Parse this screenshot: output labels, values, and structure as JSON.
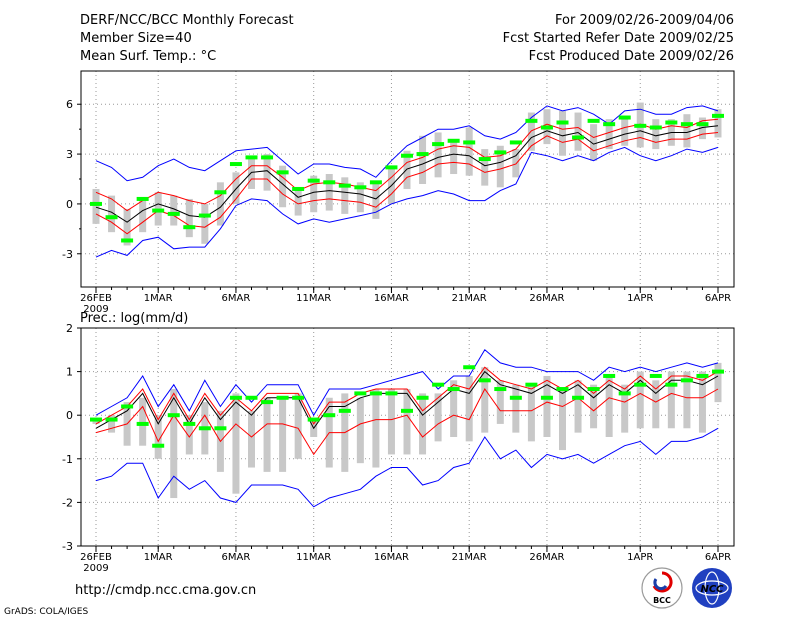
{
  "header": {
    "title": "DERF/NCC/BCC Monthly Forecast",
    "member_size": "Member Size=40",
    "variable1": "Mean Surf. Temp.: °C",
    "for_range": "For 2009/02/26-2009/04/06",
    "refer_date": "Fcst Started Refer Date 2009/02/25",
    "produced_date": "Fcst Produced Date 2009/02/26"
  },
  "footer": {
    "url": "http://cmdp.ncc.cma.gov.cn",
    "grads": "GrADS: COLA/IGES",
    "logo_bcc_text": "BCC",
    "logo_ncc_text": "NCC"
  },
  "chart_data": [
    {
      "type": "line",
      "title": "Mean Surf. Temp.: °C",
      "x_day_index_range": [
        0,
        39
      ],
      "x_ticks": [
        {
          "day": 0,
          "label": "26FEB",
          "sub": "2009"
        },
        {
          "day": 4,
          "label": "1MAR"
        },
        {
          "day": 9,
          "label": "6MAR"
        },
        {
          "day": 14,
          "label": "11MAR"
        },
        {
          "day": 19,
          "label": "16MAR"
        },
        {
          "day": 24,
          "label": "21MAR"
        },
        {
          "day": 29,
          "label": "26MAR"
        },
        {
          "day": 35,
          "label": "1APR"
        },
        {
          "day": 40,
          "label": "6APR"
        }
      ],
      "ylim": [
        -5,
        8
      ],
      "yticks": [
        -3,
        0,
        3,
        6
      ],
      "series": [
        {
          "name": "ensemble max",
          "color": "#0000ff",
          "values": [
            2.6,
            2.2,
            1.4,
            1.6,
            2.3,
            2.7,
            2.2,
            2.0,
            2.6,
            3.2,
            3.3,
            3.4,
            2.6,
            1.8,
            2.4,
            2.4,
            2.2,
            2.1,
            1.6,
            2.6,
            3.5,
            4.0,
            4.5,
            4.5,
            4.7,
            4.1,
            3.9,
            4.3,
            5.2,
            5.9,
            5.6,
            5.8,
            5.4,
            4.8,
            5.6,
            5.7,
            5.4,
            5.4,
            5.8,
            5.9,
            5.6
          ]
        },
        {
          "name": "upper bound",
          "color": "#ff0000",
          "values": [
            0.7,
            0.3,
            -0.4,
            0.2,
            0.7,
            0.5,
            0.2,
            0.0,
            0.5,
            1.5,
            2.3,
            2.3,
            1.6,
            0.8,
            1.2,
            1.3,
            1.2,
            1.0,
            0.8,
            1.6,
            2.5,
            2.8,
            3.3,
            3.5,
            3.4,
            2.8,
            2.9,
            3.3,
            4.4,
            4.8,
            4.5,
            4.6,
            4.0,
            4.3,
            4.6,
            4.8,
            4.5,
            4.7,
            4.6,
            5.0,
            5.1
          ]
        },
        {
          "name": "ensemble mean",
          "color": "#000000",
          "values": [
            -0.2,
            -0.5,
            -1.1,
            -0.4,
            0.0,
            -0.3,
            -0.7,
            -0.8,
            -0.2,
            0.9,
            1.9,
            2.0,
            1.2,
            0.4,
            0.7,
            0.8,
            0.7,
            0.6,
            0.3,
            1.1,
            2.1,
            2.4,
            2.8,
            3.0,
            2.9,
            2.3,
            2.5,
            2.9,
            4.0,
            4.4,
            4.1,
            4.3,
            3.6,
            3.9,
            4.2,
            4.4,
            4.1,
            4.3,
            4.3,
            4.6,
            4.7
          ]
        },
        {
          "name": "lower bound",
          "color": "#ff0000",
          "values": [
            -0.6,
            -1.1,
            -1.8,
            -1.1,
            -0.4,
            -0.7,
            -1.3,
            -1.4,
            -0.8,
            0.3,
            1.5,
            1.5,
            0.6,
            0.0,
            0.2,
            0.3,
            0.2,
            0.1,
            -0.2,
            0.6,
            1.6,
            1.9,
            2.4,
            2.5,
            2.4,
            1.9,
            2.1,
            2.4,
            3.5,
            4.1,
            3.7,
            3.9,
            3.2,
            3.5,
            3.8,
            4.0,
            3.7,
            3.9,
            3.9,
            4.2,
            4.3
          ]
        },
        {
          "name": "ensemble min",
          "color": "#0000ff",
          "values": [
            -3.2,
            -2.8,
            -3.1,
            -2.2,
            -2.0,
            -2.7,
            -2.6,
            -2.6,
            -1.5,
            -0.1,
            0.3,
            0.2,
            -0.6,
            -1.2,
            -0.9,
            -1.1,
            -0.9,
            -0.7,
            -0.5,
            0.0,
            0.3,
            0.5,
            0.8,
            0.6,
            0.2,
            0.2,
            0.8,
            1.2,
            3.1,
            2.9,
            2.6,
            2.9,
            2.6,
            3.1,
            3.4,
            2.9,
            2.6,
            2.9,
            3.3,
            3.1,
            3.4
          ]
        }
      ],
      "percentile_bars": {
        "color": "#c8c8c8",
        "low": [
          -1.2,
          -1.7,
          -2.5,
          -1.7,
          -1.3,
          -1.3,
          -2.0,
          -2.4,
          -1.3,
          0.0,
          0.9,
          0.8,
          -0.2,
          -0.7,
          -0.5,
          -0.4,
          -0.6,
          -0.5,
          -0.9,
          0.0,
          0.9,
          1.2,
          1.6,
          1.8,
          1.7,
          1.1,
          1.0,
          1.6,
          3.2,
          3.6,
          2.9,
          3.2,
          2.6,
          3.3,
          3.5,
          3.4,
          3.3,
          3.5,
          3.4,
          3.9,
          4.0
        ],
        "high": [
          0.9,
          0.5,
          -0.3,
          0.3,
          0.7,
          0.5,
          0.3,
          0.0,
          1.3,
          1.9,
          2.9,
          3.0,
          2.3,
          0.9,
          1.7,
          1.8,
          1.6,
          1.3,
          1.3,
          2.2,
          3.2,
          4.1,
          4.3,
          3.9,
          4.6,
          3.3,
          3.5,
          3.3,
          5.5,
          5.7,
          5.6,
          5.5,
          4.8,
          5.1,
          5.2,
          6.1,
          5.1,
          5.1,
          5.4,
          5.2,
          5.7
        ]
      },
      "markers": {
        "color": "#00ff00",
        "values": [
          0.0,
          -0.8,
          -2.2,
          0.3,
          -0.4,
          -0.6,
          -1.4,
          -0.7,
          0.7,
          2.4,
          2.8,
          2.8,
          1.9,
          0.9,
          1.4,
          1.3,
          1.1,
          1.0,
          1.3,
          2.2,
          2.9,
          3.0,
          3.6,
          3.8,
          3.7,
          2.7,
          3.1,
          3.7,
          5.0,
          4.6,
          4.9,
          4.0,
          5.0,
          4.8,
          5.2,
          4.7,
          4.6,
          4.9,
          4.8,
          4.8,
          5.3
        ]
      }
    },
    {
      "type": "line",
      "title": "Prec.: log(mm/d)",
      "x_day_index_range": [
        0,
        39
      ],
      "x_ticks": [
        {
          "day": 0,
          "label": "26FEB",
          "sub": "2009"
        },
        {
          "day": 4,
          "label": "1MAR"
        },
        {
          "day": 9,
          "label": "6MAR"
        },
        {
          "day": 14,
          "label": "11MAR"
        },
        {
          "day": 19,
          "label": "16MAR"
        },
        {
          "day": 24,
          "label": "21MAR"
        },
        {
          "day": 29,
          "label": "26MAR"
        },
        {
          "day": 35,
          "label": "1APR"
        },
        {
          "day": 40,
          "label": "6APR"
        }
      ],
      "ylim": [
        -3,
        2
      ],
      "yticks": [
        -3,
        -2,
        -1,
        0,
        1,
        2
      ],
      "series": [
        {
          "name": "ensemble max",
          "color": "#0000ff",
          "values": [
            0.0,
            0.2,
            0.4,
            0.9,
            0.2,
            0.7,
            0.1,
            0.8,
            0.2,
            0.7,
            0.3,
            0.7,
            0.7,
            0.7,
            0.0,
            0.6,
            0.6,
            0.6,
            0.7,
            0.8,
            0.9,
            1.0,
            0.6,
            0.9,
            0.9,
            1.5,
            1.2,
            1.1,
            1.1,
            1.0,
            1.0,
            1.0,
            0.8,
            1.1,
            1.0,
            1.1,
            1.0,
            1.1,
            1.2,
            1.1,
            1.2
          ]
        },
        {
          "name": "upper bound",
          "color": "#ff0000",
          "values": [
            -0.2,
            0.0,
            0.2,
            0.6,
            -0.1,
            0.5,
            -0.1,
            0.5,
            0.0,
            0.4,
            0.1,
            0.5,
            0.5,
            0.5,
            -0.2,
            0.3,
            0.3,
            0.5,
            0.6,
            0.6,
            0.6,
            0.1,
            0.4,
            0.7,
            0.6,
            1.1,
            0.8,
            0.7,
            0.6,
            0.8,
            0.6,
            0.8,
            0.5,
            0.8,
            0.6,
            0.9,
            0.6,
            0.9,
            0.9,
            0.8,
            1.0
          ]
        },
        {
          "name": "ensemble mean",
          "color": "#000000",
          "values": [
            -0.3,
            -0.1,
            0.1,
            0.5,
            -0.2,
            0.4,
            -0.2,
            0.4,
            -0.1,
            0.3,
            0.0,
            0.4,
            0.4,
            0.4,
            -0.3,
            0.2,
            0.2,
            0.4,
            0.5,
            0.5,
            0.5,
            0.0,
            0.3,
            0.6,
            0.5,
            1.0,
            0.7,
            0.6,
            0.5,
            0.7,
            0.5,
            0.7,
            0.4,
            0.7,
            0.5,
            0.8,
            0.5,
            0.8,
            0.8,
            0.7,
            0.9
          ]
        },
        {
          "name": "lower bound",
          "color": "#ff0000",
          "values": [
            -0.4,
            -0.3,
            -0.2,
            0.2,
            -0.6,
            0.0,
            -0.5,
            0.0,
            -0.6,
            -0.2,
            -0.5,
            -0.2,
            -0.2,
            -0.3,
            -0.9,
            -0.4,
            -0.4,
            -0.2,
            -0.1,
            -0.1,
            0.0,
            -0.5,
            -0.2,
            0.0,
            -0.1,
            0.6,
            0.1,
            0.1,
            0.1,
            0.3,
            0.2,
            0.4,
            0.1,
            0.4,
            0.3,
            0.5,
            0.3,
            0.5,
            0.4,
            0.4,
            0.6
          ]
        },
        {
          "name": "ensemble min",
          "color": "#0000ff",
          "values": [
            -1.5,
            -1.4,
            -1.1,
            -1.1,
            -1.9,
            -1.4,
            -1.7,
            -1.5,
            -1.9,
            -2.0,
            -1.6,
            -1.6,
            -1.6,
            -1.7,
            -2.1,
            -1.9,
            -1.8,
            -1.7,
            -1.4,
            -1.2,
            -1.2,
            -1.6,
            -1.5,
            -1.2,
            -1.1,
            -0.5,
            -1.0,
            -0.8,
            -1.2,
            -0.9,
            -1.0,
            -0.9,
            -1.1,
            -0.9,
            -0.7,
            -0.6,
            -0.9,
            -0.6,
            -0.6,
            -0.5,
            -0.3
          ]
        }
      ],
      "percentile_bars": {
        "color": "#c8c8c8",
        "low": [
          -0.2,
          -0.4,
          -0.7,
          -0.7,
          -1.0,
          -1.9,
          -0.9,
          -0.9,
          -1.3,
          -1.8,
          -1.2,
          -1.3,
          -1.3,
          -1.0,
          -0.5,
          -1.2,
          -1.3,
          -1.1,
          -1.2,
          -0.9,
          -0.9,
          -0.9,
          -0.6,
          -0.5,
          -0.6,
          -0.4,
          -0.2,
          -0.4,
          -0.6,
          -0.5,
          -0.8,
          -0.4,
          -0.3,
          -0.5,
          -0.4,
          -0.3,
          -0.3,
          -0.3,
          -0.3,
          -0.4,
          0.3
        ],
        "high": [
          -0.1,
          0.0,
          0.3,
          0.4,
          0.0,
          0.6,
          0.0,
          0.3,
          0.1,
          0.5,
          0.1,
          0.4,
          0.4,
          0.5,
          -0.1,
          0.4,
          0.5,
          0.4,
          0.6,
          0.6,
          0.6,
          0.5,
          0.5,
          0.8,
          0.9,
          1.1,
          0.8,
          0.7,
          0.7,
          0.9,
          0.6,
          0.8,
          0.7,
          0.9,
          0.7,
          1.0,
          0.8,
          1.0,
          1.0,
          1.0,
          1.2
        ]
      },
      "markers": {
        "color": "#00ff00",
        "values": [
          -0.1,
          -0.1,
          0.2,
          -0.2,
          -0.7,
          0.0,
          -0.2,
          -0.3,
          -0.3,
          0.4,
          0.4,
          0.3,
          0.4,
          0.4,
          -0.1,
          0.0,
          0.1,
          0.5,
          0.5,
          0.5,
          0.1,
          0.4,
          0.7,
          0.6,
          1.1,
          0.8,
          0.6,
          0.4,
          0.7,
          0.4,
          0.6,
          0.4,
          0.6,
          0.9,
          0.5,
          0.7,
          0.9,
          0.7,
          0.8,
          0.9,
          1.0
        ]
      }
    }
  ]
}
